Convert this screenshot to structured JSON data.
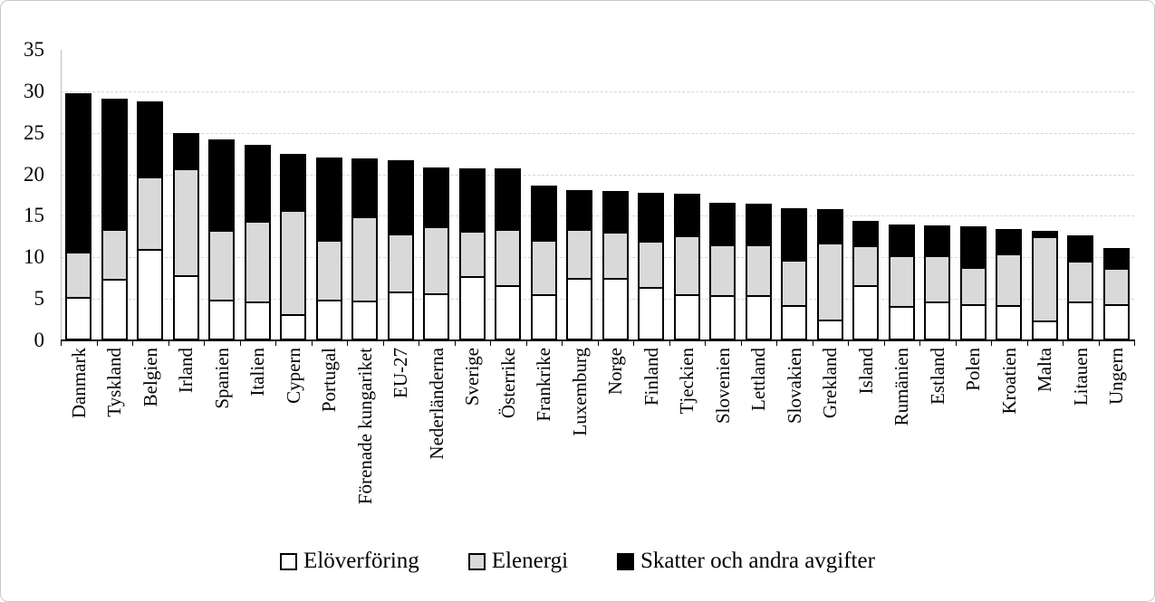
{
  "chart_data": {
    "type": "bar",
    "stacked": true,
    "orientation": "vertical",
    "title": "",
    "xlabel": "",
    "ylabel": "",
    "ylim": [
      0,
      35
    ],
    "yticks": [
      0,
      5,
      10,
      15,
      20,
      25,
      30,
      35
    ],
    "grid": "horizontal-dashed",
    "legend_position": "bottom",
    "categories": [
      "Danmark",
      "Tyskland",
      "Belgien",
      "Irland",
      "Spanien",
      "Italien",
      "Cypern",
      "Portugal",
      "Förenade kungariket",
      "EU-27",
      "Nederländerna",
      "Sverige",
      "Österrike",
      "Frankrike",
      "Luxemburg",
      "Norge",
      "Finland",
      "Tjeckien",
      "Slovenien",
      "Lettland",
      "Slovakien",
      "Grekland",
      "Island",
      "Rumänien",
      "Estland",
      "Polen",
      "Kroatien",
      "Malta",
      "Litauen",
      "Ungern"
    ],
    "series": [
      {
        "name": "Elöverföring",
        "color": "#ffffff",
        "outline": "#000000",
        "values": [
          5.2,
          7.4,
          11.0,
          7.9,
          4.9,
          4.7,
          3.2,
          4.9,
          4.8,
          5.9,
          5.7,
          7.7,
          6.6,
          5.6,
          7.5,
          7.5,
          6.4,
          5.6,
          5.4,
          5.4,
          4.2,
          2.5,
          6.6,
          4.1,
          4.7,
          4.4,
          4.3,
          2.4,
          4.7,
          4.4
        ]
      },
      {
        "name": "Elenergi",
        "color": "#d9d9d9",
        "outline": "#000000",
        "values": [
          5.3,
          5.8,
          8.5,
          12.6,
          8.2,
          9.5,
          12.3,
          7.0,
          9.9,
          6.8,
          7.8,
          5.3,
          6.6,
          6.3,
          5.7,
          5.4,
          5.4,
          6.8,
          5.9,
          5.9,
          5.3,
          9.1,
          4.6,
          5.9,
          5.3,
          4.2,
          6.0,
          9.9,
          4.7,
          4.1
        ]
      },
      {
        "name": "Skatter och andra avgifter",
        "color": "#000000",
        "outline": "#000000",
        "values": [
          19.3,
          15.9,
          9.3,
          4.5,
          11.1,
          9.3,
          7.0,
          10.1,
          7.2,
          9.0,
          7.3,
          7.7,
          7.5,
          6.7,
          4.9,
          5.1,
          6.0,
          5.3,
          5.3,
          5.2,
          6.4,
          4.2,
          3.2,
          4.0,
          3.9,
          5.1,
          3.1,
          0.9,
          3.3,
          2.6
        ]
      }
    ],
    "totals": [
      29.8,
      29.1,
      28.8,
      25.0,
      24.2,
      23.5,
      22.5,
      22.0,
      21.9,
      21.7,
      20.8,
      20.7,
      20.7,
      18.6,
      18.1,
      18.0,
      17.8,
      17.7,
      16.6,
      16.5,
      15.9,
      15.8,
      14.4,
      14.0,
      13.9,
      13.7,
      13.4,
      13.2,
      12.7,
      11.1
    ]
  },
  "colors": {
    "gridline": "#d6d6d6",
    "axis": "#000000",
    "frame_border": "#c9c9c9",
    "background": "#ffffff"
  }
}
